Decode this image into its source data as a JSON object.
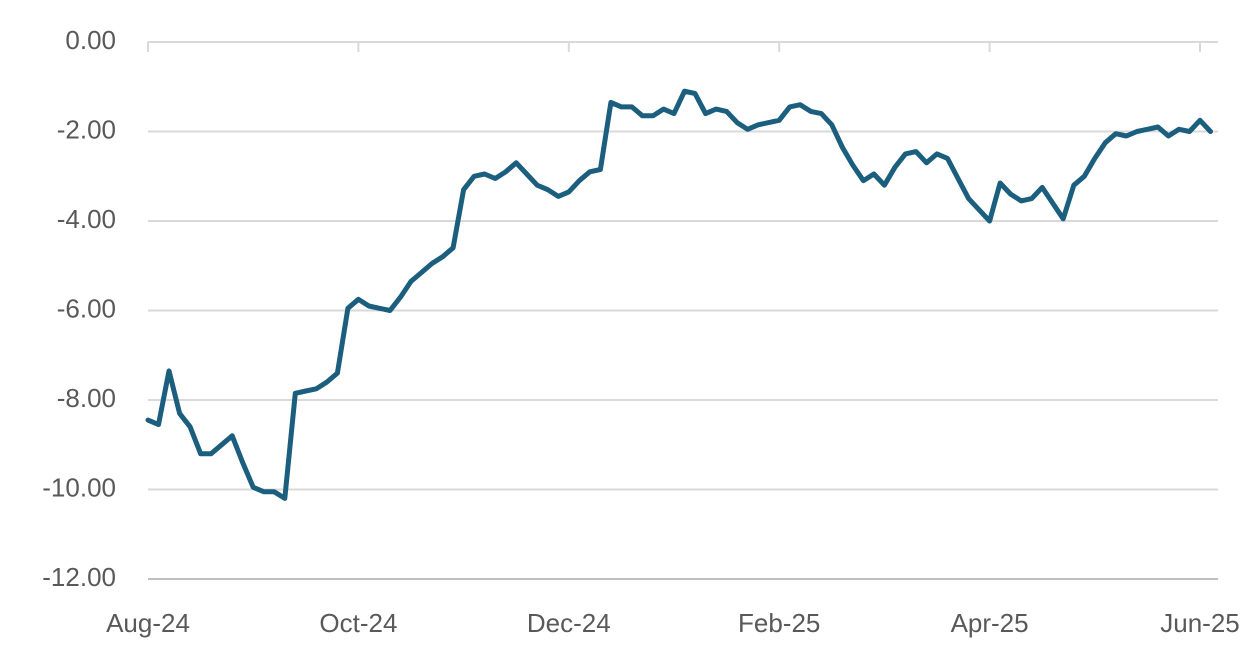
{
  "chart_data": {
    "type": "line",
    "categories": [
      "Aug-24",
      null,
      null,
      null,
      null,
      null,
      null,
      null,
      null,
      null,
      null,
      null,
      null,
      null,
      null,
      null,
      null,
      null,
      null,
      null,
      "Oct-24",
      null,
      null,
      null,
      null,
      null,
      null,
      null,
      null,
      null,
      null,
      null,
      null,
      null,
      null,
      null,
      null,
      null,
      null,
      null,
      "Dec-24",
      null,
      null,
      null,
      null,
      null,
      null,
      null,
      null,
      null,
      null,
      null,
      null,
      null,
      null,
      null,
      null,
      null,
      null,
      null,
      "Feb-25",
      null,
      null,
      null,
      null,
      null,
      null,
      null,
      null,
      null,
      null,
      null,
      null,
      null,
      null,
      null,
      null,
      null,
      null,
      null,
      "Apr-25",
      null,
      null,
      null,
      null,
      null,
      null,
      null,
      null,
      null,
      null,
      null,
      null,
      null,
      null,
      null,
      null,
      null,
      null,
      null,
      "Jun-25",
      null
    ],
    "values": [
      -8.45,
      -8.55,
      -7.35,
      -8.3,
      -8.6,
      -9.2,
      -9.2,
      -9.0,
      -8.8,
      -9.4,
      -9.95,
      -10.05,
      -10.05,
      -10.2,
      -7.85,
      -7.8,
      -7.75,
      -7.6,
      -7.4,
      -5.95,
      -5.75,
      -5.9,
      -5.95,
      -6.0,
      -5.7,
      -5.35,
      -5.15,
      -4.95,
      -4.8,
      -4.6,
      -3.3,
      -3.0,
      -2.95,
      -3.05,
      -2.9,
      -2.7,
      -2.95,
      -3.2,
      -3.3,
      -3.45,
      -3.35,
      -3.1,
      -2.9,
      -2.85,
      -1.35,
      -1.45,
      -1.45,
      -1.65,
      -1.65,
      -1.5,
      -1.6,
      -1.1,
      -1.15,
      -1.6,
      -1.5,
      -1.55,
      -1.8,
      -1.95,
      -1.85,
      -1.8,
      -1.75,
      -1.45,
      -1.4,
      -1.55,
      -1.6,
      -1.85,
      -2.35,
      -2.75,
      -3.1,
      -2.95,
      -3.2,
      -2.8,
      -2.5,
      -2.45,
      -2.7,
      -2.5,
      -2.6,
      -3.05,
      -3.5,
      -3.75,
      -4.0,
      -3.15,
      -3.4,
      -3.55,
      -3.5,
      -3.25,
      -3.6,
      -3.95,
      -3.2,
      -3.0,
      -2.6,
      -2.25,
      -2.05,
      -2.1,
      -2.0,
      -1.95,
      -1.9,
      -2.1,
      -1.95,
      -2.0,
      -1.75,
      -2.0
    ],
    "color": "#1b5e7e",
    "ylim": [
      -12,
      0
    ],
    "yticks": [
      {
        "value": 0,
        "label": "0.00"
      },
      {
        "value": -2,
        "label": "-2.00"
      },
      {
        "value": -4,
        "label": "-4.00"
      },
      {
        "value": -6,
        "label": "-6.00"
      },
      {
        "value": -8,
        "label": "-8.00"
      },
      {
        "value": -10,
        "label": "-10.00"
      },
      {
        "value": -12,
        "label": "-12.00"
      }
    ],
    "grid": true
  }
}
